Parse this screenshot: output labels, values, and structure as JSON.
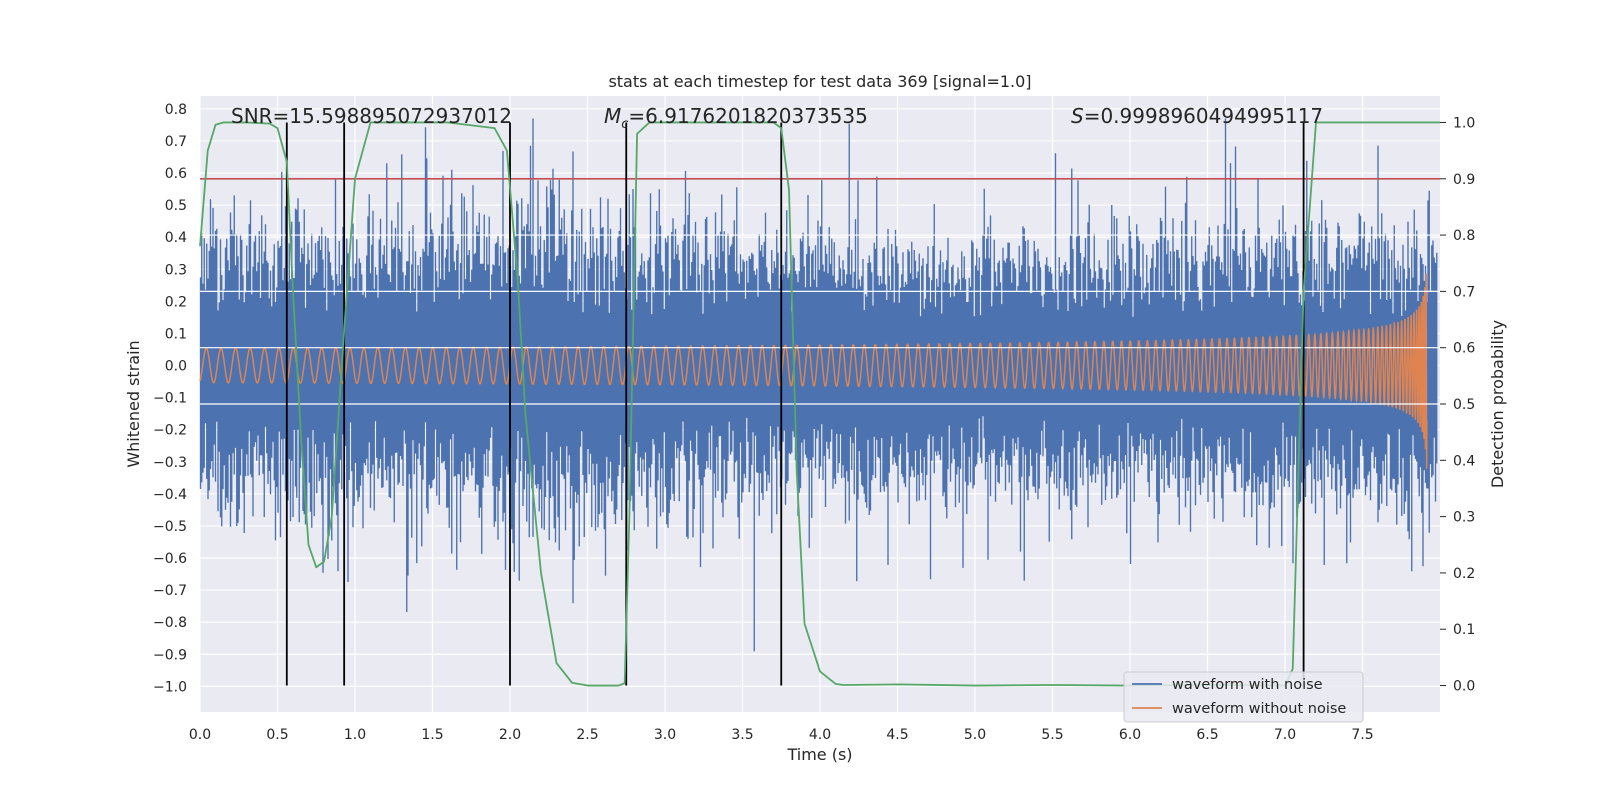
{
  "chart_data": {
    "type": "line",
    "title": "stats at each timestep for test data 369 [signal=1.0]",
    "xlabel": "Time (s)",
    "ylabel": "Whitened strain",
    "ylabel_right": "Detection probability",
    "xlim": [
      0.0,
      8.0
    ],
    "ylim_left": [
      -1.08,
      0.84
    ],
    "ylim_right": [
      -0.047,
      1.047
    ],
    "x_ticks": [
      "0.0",
      "0.5",
      "1.0",
      "1.5",
      "2.0",
      "2.5",
      "3.0",
      "3.5",
      "4.0",
      "4.5",
      "5.0",
      "5.5",
      "6.0",
      "6.5",
      "7.0",
      "7.5"
    ],
    "y_ticks_left": [
      "0.8",
      "0.7",
      "0.6",
      "0.5",
      "0.4",
      "0.3",
      "0.2",
      "0.1",
      "0.0",
      "−0.1",
      "−0.2",
      "−0.3",
      "−0.4",
      "−0.5",
      "−0.6",
      "−0.7",
      "−0.8",
      "−0.9",
      "−1.0"
    ],
    "y_ticks_right": [
      "1.0",
      "0.9",
      "0.8",
      "0.7",
      "0.6",
      "0.5",
      "0.4",
      "0.3",
      "0.2",
      "0.1",
      "0.0"
    ],
    "grid": true,
    "annotations": {
      "snr": "SNR=15.598895072937012",
      "mc_symbol": "M",
      "mc_sub": "c",
      "mc_value": "=6.9176201820373535",
      "s_symbol": "S",
      "s_value": "=0.9998960494995117"
    },
    "threshold_line": {
      "axis": "right",
      "y": 0.9,
      "color": "#c44e52"
    },
    "vertical_lines": [
      0.56,
      0.93,
      2.0,
      2.75,
      3.75,
      7.12
    ],
    "legend": {
      "placement": "lower-right",
      "entries": [
        {
          "label": "waveform with noise",
          "color": "#4c72b0"
        },
        {
          "label": "waveform without noise",
          "color": "#dd8452"
        }
      ]
    },
    "series": [
      {
        "name": "waveform with noise",
        "axis": "left",
        "color": "#4c72b0",
        "kind": "noise",
        "typical_band": [
          -0.34,
          0.32
        ],
        "extreme_range": [
          -1.0,
          0.77
        ]
      },
      {
        "name": "waveform without noise",
        "axis": "left",
        "color": "#dd8452",
        "kind": "chirp",
        "amplitude_start": 0.018,
        "amplitude_end": 0.48,
        "merger_time": 7.92
      },
      {
        "name": "",
        "axis": "right",
        "color": "#55a868",
        "kind": "line",
        "x": [
          0.0,
          0.05,
          0.1,
          0.15,
          0.3,
          0.45,
          0.5,
          0.56,
          0.6,
          0.65,
          0.7,
          0.75,
          0.8,
          0.85,
          0.93,
          1.0,
          1.1,
          1.3,
          1.6,
          1.9,
          1.98,
          2.05,
          2.1,
          2.2,
          2.3,
          2.4,
          2.5,
          2.6,
          2.7,
          2.74,
          2.77,
          2.82,
          2.9,
          3.0,
          3.5,
          3.7,
          3.75,
          3.8,
          3.85,
          3.9,
          4.0,
          4.1,
          4.15,
          4.5,
          5.0,
          5.5,
          6.0,
          6.5,
          7.0,
          7.05,
          7.12,
          7.2,
          7.5,
          8.0
        ],
        "y": [
          0.78,
          0.95,
          0.996,
          1.0,
          1.0,
          0.998,
          0.99,
          0.93,
          0.7,
          0.45,
          0.25,
          0.21,
          0.22,
          0.3,
          0.63,
          0.9,
          1.0,
          1.0,
          1.0,
          0.99,
          0.95,
          0.72,
          0.48,
          0.2,
          0.04,
          0.005,
          0.0,
          0.0,
          0.0,
          0.004,
          0.3,
          0.98,
          1.0,
          1.0,
          1.0,
          1.0,
          0.99,
          0.88,
          0.38,
          0.11,
          0.025,
          0.003,
          0.001,
          0.002,
          0.0,
          0.001,
          0.0,
          0.001,
          0.0,
          0.03,
          0.7,
          1.0,
          1.0,
          1.0
        ]
      }
    ]
  }
}
